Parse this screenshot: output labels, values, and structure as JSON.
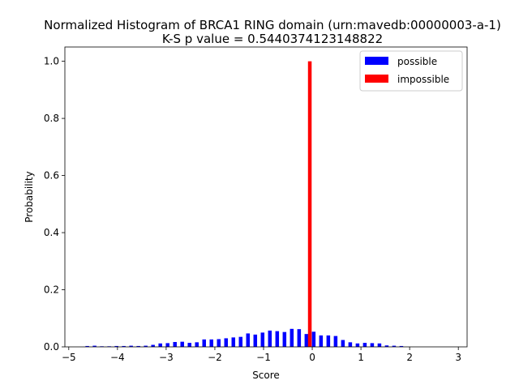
{
  "chart_data": {
    "type": "bar",
    "title_line1": "Normalized Histogram of BRCA1 RING domain (urn:mavedb:00000003-a-1)",
    "title_line2": "K-S p value = 0.5440374123148822",
    "xlabel": "Score",
    "ylabel": "Probability",
    "xlim": [
      -5.08,
      3.18
    ],
    "ylim": [
      0,
      1.05
    ],
    "xticks": [
      -5,
      -4,
      -3,
      -2,
      -1,
      0,
      1,
      2,
      3
    ],
    "xtick_labels": [
      "−5",
      "−4",
      "−3",
      "−2",
      "−1",
      "0",
      "1",
      "2",
      "3"
    ],
    "yticks": [
      0.0,
      0.2,
      0.4,
      0.6,
      0.8,
      1.0
    ],
    "ytick_labels": [
      "0.0",
      "0.2",
      "0.4",
      "0.6",
      "0.8",
      "1.0"
    ],
    "legend_position": "top-right",
    "bar_width": 0.075,
    "series": [
      {
        "name": "possible",
        "color": "#0000ff",
        "x": [
          -4.62,
          -4.47,
          -4.32,
          -4.17,
          -4.02,
          -3.87,
          -3.72,
          -3.57,
          -3.42,
          -3.27,
          -3.12,
          -2.97,
          -2.82,
          -2.67,
          -2.52,
          -2.37,
          -2.22,
          -2.07,
          -1.92,
          -1.77,
          -1.62,
          -1.47,
          -1.32,
          -1.17,
          -1.02,
          -0.87,
          -0.72,
          -0.57,
          -0.42,
          -0.27,
          -0.12,
          0.03,
          0.18,
          0.33,
          0.48,
          0.63,
          0.78,
          0.93,
          1.08,
          1.23,
          1.38,
          1.53,
          1.68,
          1.83
        ],
        "values": [
          0.003,
          0.004,
          0.002,
          0.002,
          0.003,
          0.003,
          0.004,
          0.003,
          0.004,
          0.007,
          0.012,
          0.013,
          0.017,
          0.018,
          0.014,
          0.016,
          0.026,
          0.026,
          0.027,
          0.03,
          0.033,
          0.035,
          0.047,
          0.043,
          0.05,
          0.057,
          0.055,
          0.052,
          0.063,
          0.062,
          0.045,
          0.053,
          0.04,
          0.04,
          0.038,
          0.024,
          0.016,
          0.012,
          0.014,
          0.013,
          0.012,
          0.005,
          0.004,
          0.003
        ]
      },
      {
        "name": "impossible",
        "color": "#ff0000",
        "x": [
          -0.05
        ],
        "values": [
          1.0
        ]
      }
    ]
  }
}
